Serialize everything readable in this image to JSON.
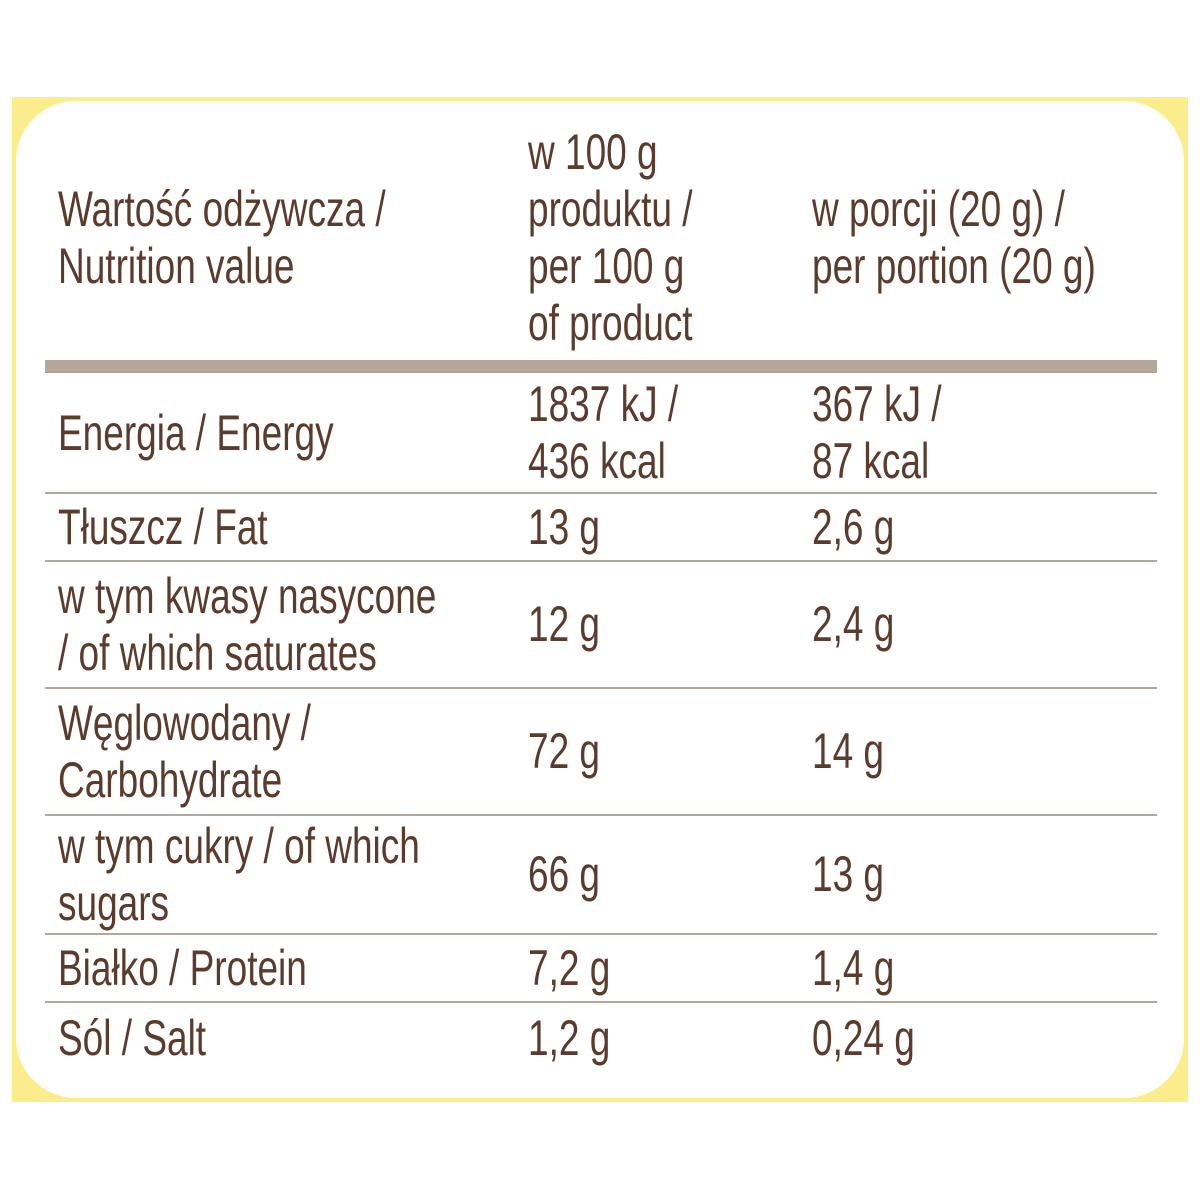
{
  "table": {
    "header": [
      [
        "Wartość odżywcza /",
        "Nutrition value"
      ],
      [
        "w 100 g",
        "produktu /",
        "per 100 g",
        "of product"
      ],
      [
        "w porcji (20 g) /",
        "per portion (20 g)"
      ]
    ],
    "rows": [
      [
        [
          "Energia / Energy"
        ],
        [
          "1837 kJ /",
          "436 kcal"
        ],
        [
          "367 kJ /",
          "87 kcal"
        ]
      ],
      [
        [
          "Tłuszcz / Fat"
        ],
        [
          "13 g"
        ],
        [
          "2,6 g"
        ]
      ],
      [
        [
          "w tym kwasy nasycone",
          "/ of which saturates"
        ],
        [
          "12 g"
        ],
        [
          "2,4 g"
        ]
      ],
      [
        [
          "Węglowodany /",
          "Carbohydrate"
        ],
        [
          "72 g"
        ],
        [
          "14 g"
        ]
      ],
      [
        [
          "w tym cukry / of which",
          "sugars"
        ],
        [
          "66 g"
        ],
        [
          "13 g"
        ]
      ],
      [
        [
          "Białko / Protein"
        ],
        [
          "7,2 g"
        ],
        [
          "1,4 g"
        ]
      ],
      [
        [
          "Sól / Salt"
        ],
        [
          "1,2 g"
        ],
        [
          "0,24 g"
        ]
      ]
    ]
  }
}
